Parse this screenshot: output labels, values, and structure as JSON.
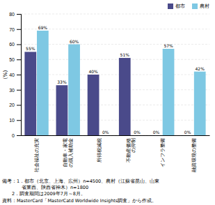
{
  "chart_data": {
    "type": "bar",
    "categories": [
      "社会福祉の充実",
      "自動車・家電\nの購入補助金",
      "所得税減税",
      "不動産価格\nの抑制",
      "インフラ整備",
      "融資環境の整備"
    ],
    "series": [
      {
        "name": "都市",
        "color": "#4a4a8a",
        "values": [
          55,
          33,
          40,
          51,
          0,
          0
        ],
        "value_labels": [
          "55%",
          "33%",
          "40%",
          "51%",
          "0%",
          "0%"
        ]
      },
      {
        "name": "農村",
        "color": "#7ec8e3",
        "values": [
          69,
          60,
          0,
          0,
          57,
          42
        ],
        "value_labels": [
          "69%",
          "60%",
          "0%",
          "0%",
          "57%",
          "42%"
        ]
      }
    ],
    "ylabel": "(%)",
    "ylim": [
      0,
      80
    ],
    "yticks": [
      0,
      10,
      20,
      30,
      40,
      50,
      60,
      70,
      80
    ],
    "grid": true,
    "legend": "upper right",
    "data_labels": true,
    "annotations": [
      "備考：1．都市（北京、上海、広州）n=4500、農村（江蘇省昆山、山東",
      "　　　　省莱西、陝西省神木）n=1800",
      "　　2．調査期間は2009年7月～8月。",
      "資料：MasterCard「MasterCatd Worldwide Insights調査」から作成。"
    ]
  }
}
